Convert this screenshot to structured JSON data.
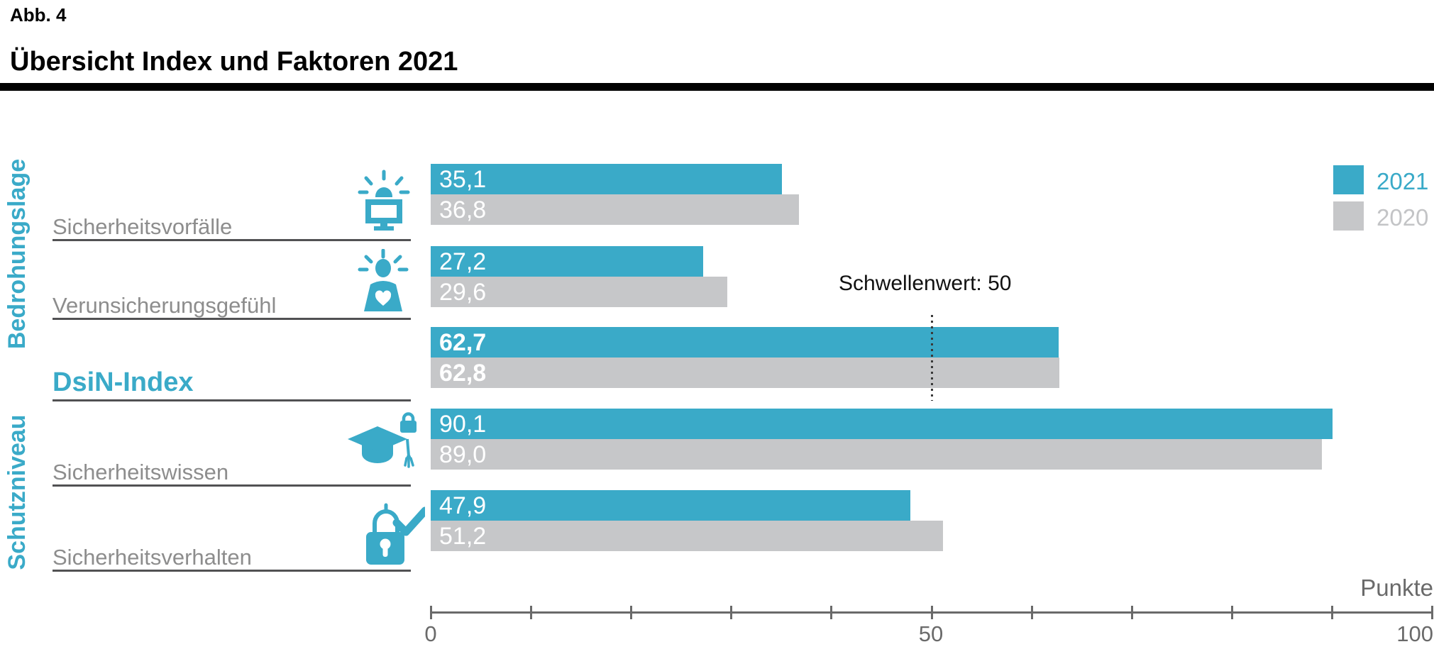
{
  "header": {
    "figure_label": "Abb. 4",
    "title": "Übersicht Index und Faktoren 2021"
  },
  "legend": {
    "items": [
      {
        "label": "2021"
      },
      {
        "label": "2020"
      }
    ]
  },
  "group_labels": {
    "top": "Bedrohungslage",
    "bottom": "Schutzniveau"
  },
  "threshold": {
    "label": "Schwellenwert: 50",
    "value": 50
  },
  "axis": {
    "min": 0,
    "max": 100,
    "tick_step": 10,
    "tick_labels": [
      "0",
      "50",
      "100"
    ],
    "unit_label": "Punkte"
  },
  "colors": {
    "accent": "#3aaac8",
    "bar_2021": "#3aaac8",
    "bar_2020": "#c6c7c9",
    "label_gray": "#8d8d8d"
  },
  "rows": [
    {
      "label": "Sicherheitsvorfälle",
      "icon": "alarm-monitor-icon",
      "v2021": 35.1,
      "v2020": 36.8,
      "v2021_label": "35,1",
      "v2020_label": "36,8",
      "emphasis": false
    },
    {
      "label": "Verunsicherungsgefühl",
      "icon": "person-alert-icon",
      "v2021": 27.2,
      "v2020": 29.6,
      "v2021_label": "27,2",
      "v2020_label": "29,6",
      "emphasis": false
    },
    {
      "label": "DsiN-Index",
      "icon": null,
      "v2021": 62.7,
      "v2020": 62.8,
      "v2021_label": "62,7",
      "v2020_label": "62,8",
      "emphasis": true
    },
    {
      "label": "Sicherheitswissen",
      "icon": "gradcap-lock-icon",
      "v2021": 90.1,
      "v2020": 89.0,
      "v2021_label": "90,1",
      "v2020_label": "89,0",
      "emphasis": false
    },
    {
      "label": "Sicherheitsverhalten",
      "icon": "lock-check-icon",
      "v2021": 47.9,
      "v2020": 51.2,
      "v2021_label": "47,9",
      "v2020_label": "51,2",
      "emphasis": false
    }
  ],
  "chart_data": {
    "type": "bar",
    "orientation": "horizontal",
    "figure_label": "Abb. 4",
    "title": "Übersicht Index und Faktoren 2021",
    "categories": [
      "Sicherheitsvorfälle",
      "Verunsicherungsgefühl",
      "DsiN-Index",
      "Sicherheitswissen",
      "Sicherheitsverhalten"
    ],
    "series": [
      {
        "name": "2021",
        "color": "#3aaac8",
        "values": [
          35.1,
          27.2,
          62.7,
          90.1,
          47.9
        ]
      },
      {
        "name": "2020",
        "color": "#c6c7c9",
        "values": [
          36.8,
          29.6,
          62.8,
          89.0,
          51.2
        ]
      }
    ],
    "value_labels": {
      "2021": [
        "35,1",
        "27,2",
        "62,7",
        "90,1",
        "47,9"
      ],
      "2020": [
        "36,8",
        "29,6",
        "62,8",
        "89,0",
        "51,2"
      ]
    },
    "category_groups": [
      {
        "label": "Bedrohungslage",
        "categories": [
          "Sicherheitsvorfälle",
          "Verunsicherungsgefühl"
        ]
      },
      {
        "label": "Schutzniveau",
        "categories": [
          "Sicherheitswissen",
          "Sicherheitsverhalten"
        ]
      }
    ],
    "threshold": {
      "label": "Schwellenwert: 50",
      "value": 50
    },
    "xlabel": "Punkte",
    "xlim": [
      0,
      100
    ],
    "xticks_step": 10,
    "xtick_labels_shown": [
      0,
      50,
      100
    ],
    "grid": false,
    "legend_position": "top-right"
  }
}
